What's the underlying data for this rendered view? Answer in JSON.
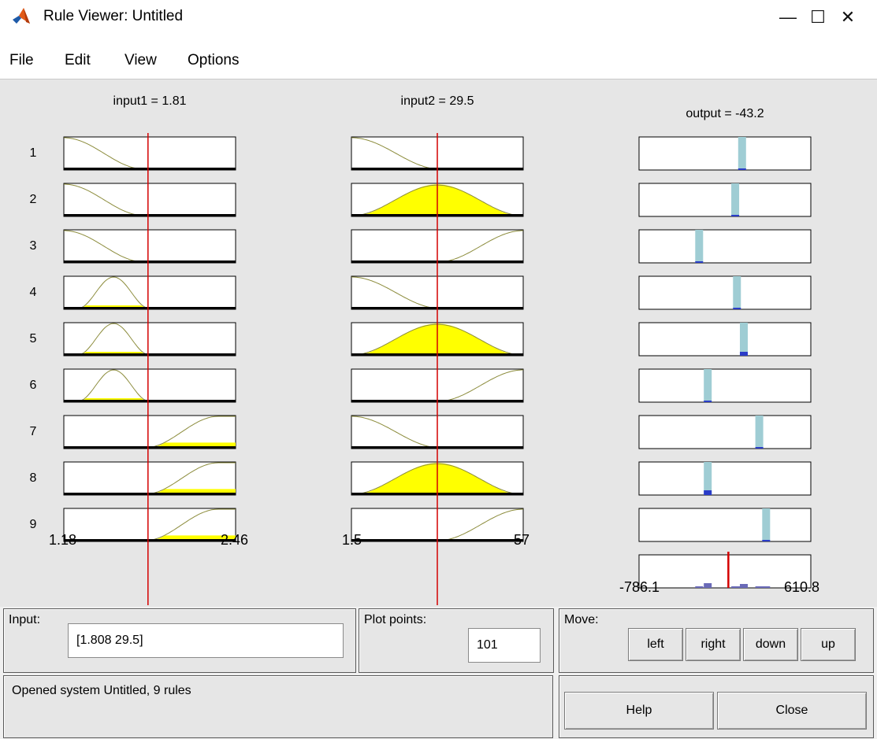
{
  "window": {
    "title": "Rule Viewer: Untitled",
    "controls": {
      "minimize": "—",
      "maximize": "☐",
      "close": "✕"
    }
  },
  "menu": [
    "File",
    "Edit",
    "View",
    "Options"
  ],
  "plot": {
    "input1_label": "input1 = 1.81",
    "input2_label": "input2 = 29.5",
    "output_label": "output = -43.2",
    "rule_numbers": [
      "1",
      "2",
      "3",
      "4",
      "5",
      "6",
      "7",
      "8",
      "9"
    ],
    "input1_range": [
      "1.18",
      "2.46"
    ],
    "input2_range": [
      "1.5",
      "57"
    ],
    "output_range": [
      "-786.1",
      "610.8"
    ],
    "colors": {
      "mf_fill": "#ffff00",
      "mf_line": "#8c8c3c",
      "input_marker": "#d40000",
      "output_bar": "#9fcdd4",
      "output_tick": "#2a3cc8"
    }
  },
  "controls": {
    "input_label": "Input:",
    "input_value": "[1.808 29.5]",
    "plot_points_label": "Plot points:",
    "plot_points_value": "101",
    "move_label": "Move:",
    "move_buttons": {
      "left": "left",
      "right": "right",
      "down": "down",
      "up": "up"
    },
    "status": "Opened system Untitled, 9 rules",
    "help_button": "Help",
    "close_button": "Close"
  }
}
